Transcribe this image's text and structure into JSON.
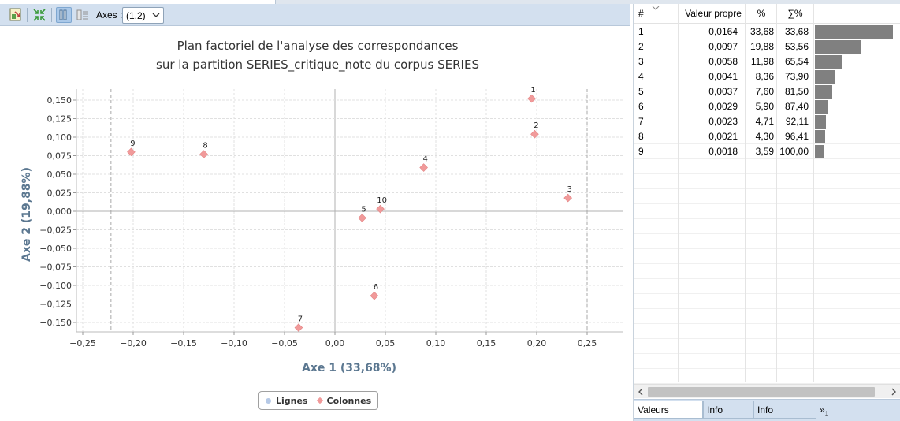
{
  "toolbar": {
    "axes_label": "Axes :",
    "axes_value": "(1,2)",
    "icons": [
      "export-icon",
      "fit-icon",
      "show-labels-icon",
      "list-icon",
      "chevron-down-icon"
    ]
  },
  "chart_data": {
    "type": "scatter",
    "title_line1": "Plan factoriel de l'analyse des correspondances",
    "title_line2": "sur la partition SERIES_critique_note du corpus SERIES",
    "xlabel": "Axe 1 (33,68%)",
    "ylabel": "Axe 2 (19,88%)",
    "xlim": [
      -0.25,
      0.25
    ],
    "ylim": [
      -0.15,
      0.15
    ],
    "x_ticks": [
      "−0,25",
      "−0,20",
      "−0,15",
      "−0,10",
      "−0,05",
      "0,00",
      "0,05",
      "0,10",
      "0,15",
      "0,20",
      "0,25"
    ],
    "y_ticks": [
      "0,150",
      "0,125",
      "0,100",
      "0,075",
      "0,050",
      "0,025",
      "0,000",
      "−0,025",
      "−0,050",
      "−0,075",
      "−0,100",
      "−0,125",
      "−0,150"
    ],
    "grid": true,
    "legend_position": "bottom-center",
    "legend": [
      "Lignes",
      "Colonnes"
    ],
    "series": [
      {
        "name": "Colonnes",
        "color": "#f19a9a",
        "marker": "diamond",
        "points": [
          {
            "label": "1",
            "x": 0.195,
            "y": 0.152
          },
          {
            "label": "2",
            "x": 0.198,
            "y": 0.104
          },
          {
            "label": "3",
            "x": 0.231,
            "y": 0.018
          },
          {
            "label": "4",
            "x": 0.088,
            "y": 0.059
          },
          {
            "label": "5",
            "x": 0.027,
            "y": -0.009
          },
          {
            "label": "6",
            "x": 0.039,
            "y": -0.114
          },
          {
            "label": "7",
            "x": -0.036,
            "y": -0.157
          },
          {
            "label": "8",
            "x": -0.13,
            "y": 0.077
          },
          {
            "label": "9",
            "x": -0.202,
            "y": 0.08
          },
          {
            "label": "10",
            "x": 0.045,
            "y": 0.003
          }
        ]
      }
    ]
  },
  "eigen_table": {
    "headers": [
      "#",
      "Valeur propre",
      "%",
      "∑%"
    ],
    "rows": [
      {
        "n": "1",
        "value": "0,0164",
        "pct": "33,68",
        "cum": "33,68",
        "bar_pct": 33.68
      },
      {
        "n": "2",
        "value": "0,0097",
        "pct": "19,88",
        "cum": "53,56",
        "bar_pct": 19.88
      },
      {
        "n": "3",
        "value": "0,0058",
        "pct": "11,98",
        "cum": "65,54",
        "bar_pct": 11.98
      },
      {
        "n": "4",
        "value": "0,0041",
        "pct": "8,36",
        "cum": "73,90",
        "bar_pct": 8.36
      },
      {
        "n": "5",
        "value": "0,0037",
        "pct": "7,60",
        "cum": "81,50",
        "bar_pct": 7.6
      },
      {
        "n": "6",
        "value": "0,0029",
        "pct": "5,90",
        "cum": "87,40",
        "bar_pct": 5.9
      },
      {
        "n": "7",
        "value": "0,0023",
        "pct": "4,71",
        "cum": "92,11",
        "bar_pct": 4.71
      },
      {
        "n": "8",
        "value": "0,0021",
        "pct": "4,30",
        "cum": "96,41",
        "bar_pct": 4.3
      },
      {
        "n": "9",
        "value": "0,0018",
        "pct": "3,59",
        "cum": "100,00",
        "bar_pct": 3.59
      }
    ],
    "bar_color": "#808080"
  },
  "tabs": {
    "eigenvalues": "Valeurs propres",
    "row_info": "Info lignes",
    "col_info": "Info colonnes",
    "more": "»",
    "more_count": "1"
  }
}
